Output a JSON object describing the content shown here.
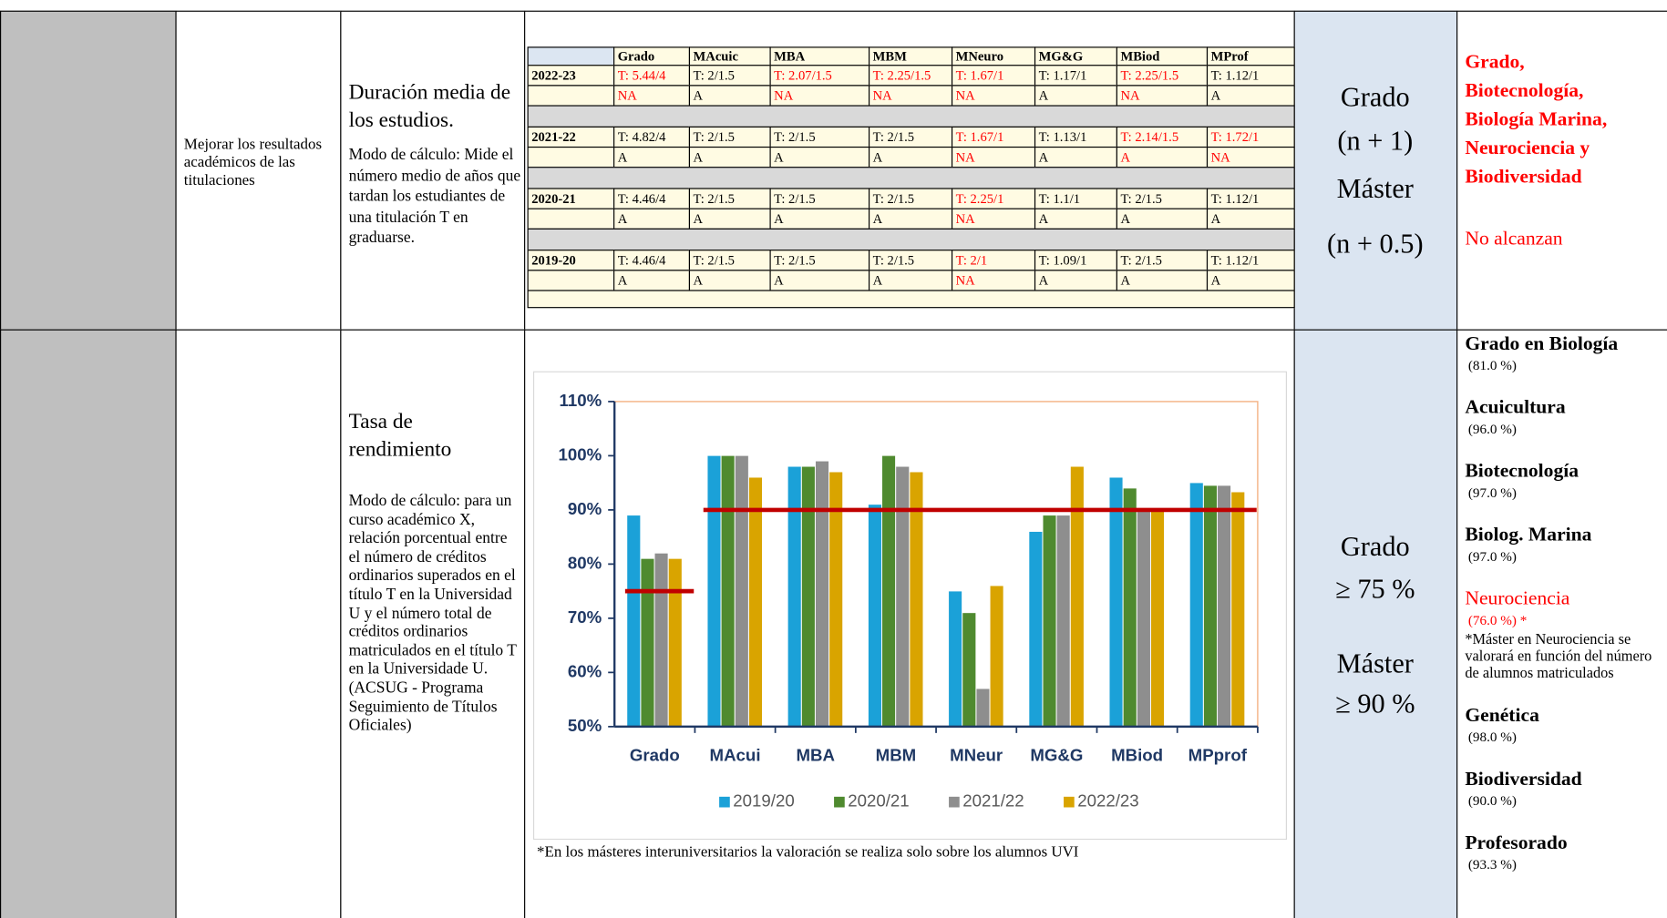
{
  "rows": [
    {
      "objective": "Mejorar los resultados académicos de las titulaciones",
      "title": "Duración media de los estudios.",
      "description": "Modo de cálculo: Mide el número medio de años que tardan los estudiantes de una titulación T en graduarse.",
      "target": [
        "Grado",
        "(n + 1)",
        "Máster",
        "(n + 0.5)"
      ],
      "outcome": {
        "text": "Grado, Biotecnología, Biología Marina, Neurociencia y Biodiversidad",
        "note": "No alcanzan",
        "color": "#ff0000"
      }
    },
    {
      "title": "Tasa de rendimiento",
      "description": "Modo de cálculo: para un curso académico X, relación porcentual entre el número de créditos ordinarios superados en el título T en la Universidad U y el número total de créditos ordinarios matriculados en el título T en la Universidade U. (ACSUG - Programa Seguimiento de Títulos Oficiales)",
      "target": [
        "Grado",
        "≥ 75 %",
        "Máster",
        "≥ 90 %"
      ],
      "outcome": {
        "items": [
          {
            "name": "Grado en Biología",
            "value": "(81.0 %)",
            "color": "#000000"
          },
          {
            "name": "Acuicultura",
            "value": "(96.0 %)",
            "color": "#000000"
          },
          {
            "name": "Biotecnología",
            "value": "(97.0 %)",
            "color": "#000000"
          },
          {
            "name": "Biolog. Marina",
            "value": "(97.0 %)",
            "color": "#000000"
          },
          {
            "name": "Neurociencia",
            "value": "(76.0 %) *",
            "color": "#ff0000",
            "note": "*Máster en Neurociencia se valorará en función del número de alumnos matriculados"
          },
          {
            "name": "Genética",
            "value": "(98.0 %)",
            "color": "#000000"
          },
          {
            "name": "Biodiversidad",
            "value": "(90.0 %)",
            "color": "#000000"
          },
          {
            "name": "Profesorado",
            "value": "(93.3 %)",
            "color": "#000000"
          }
        ]
      }
    }
  ],
  "duration_table": {
    "columns": [
      "Grado",
      "MAcuic",
      "MBA",
      "MBM",
      "MNeuro",
      "MG&G",
      "MBiod",
      "MProf"
    ],
    "years": [
      {
        "year": "2022-23",
        "times": [
          {
            "text": "T: 5.44/4",
            "color": "#ff0000"
          },
          {
            "text": "T: 2/1.5",
            "color": "#000000"
          },
          {
            "text": "T: 2.07/1.5",
            "color": "#ff0000"
          },
          {
            "text": "T: 2.25/1.5",
            "color": "#ff0000"
          },
          {
            "text": "T: 1.67/1",
            "color": "#ff0000"
          },
          {
            "text": "T: 1.17/1",
            "color": "#000000"
          },
          {
            "text": "T: 2.25/1.5",
            "color": "#ff0000"
          },
          {
            "text": "T: 1.12/1",
            "color": "#000000"
          }
        ],
        "status": [
          {
            "text": "NA",
            "color": "#ff0000"
          },
          {
            "text": "A",
            "color": "#000000"
          },
          {
            "text": "NA",
            "color": "#ff0000"
          },
          {
            "text": "NA",
            "color": "#ff0000"
          },
          {
            "text": "NA",
            "color": "#ff0000"
          },
          {
            "text": "A",
            "color": "#000000"
          },
          {
            "text": "NA",
            "color": "#ff0000"
          },
          {
            "text": "A",
            "color": "#000000"
          }
        ]
      },
      {
        "year": "2021-22",
        "times": [
          {
            "text": "T: 4.82/4",
            "color": "#000000"
          },
          {
            "text": "T: 2/1.5",
            "color": "#000000"
          },
          {
            "text": "T: 2/1.5",
            "color": "#000000"
          },
          {
            "text": "T: 2/1.5",
            "color": "#000000"
          },
          {
            "text": "T: 1.67/1",
            "color": "#ff0000"
          },
          {
            "text": "T: 1.13/1",
            "color": "#000000"
          },
          {
            "text": "T: 2.14/1.5",
            "color": "#ff0000"
          },
          {
            "text": "T: 1.72/1",
            "color": "#ff0000"
          }
        ],
        "status": [
          {
            "text": "A",
            "color": "#000000"
          },
          {
            "text": "A",
            "color": "#000000"
          },
          {
            "text": "A",
            "color": "#000000"
          },
          {
            "text": "A",
            "color": "#000000"
          },
          {
            "text": "NA",
            "color": "#ff0000"
          },
          {
            "text": "A",
            "color": "#000000"
          },
          {
            "text": "A",
            "color": "#ff0000"
          },
          {
            "text": "NA",
            "color": "#ff0000"
          }
        ]
      },
      {
        "year": "2020-21",
        "times": [
          {
            "text": "T: 4.46/4",
            "color": "#000000"
          },
          {
            "text": "T: 2/1.5",
            "color": "#000000"
          },
          {
            "text": "T: 2/1.5",
            "color": "#000000"
          },
          {
            "text": "T: 2/1.5",
            "color": "#000000"
          },
          {
            "text": "T: 2.25/1",
            "color": "#ff0000"
          },
          {
            "text": "T: 1.1/1",
            "color": "#000000"
          },
          {
            "text": "T: 2/1.5",
            "color": "#000000"
          },
          {
            "text": "T: 1.12/1",
            "color": "#000000"
          }
        ],
        "status": [
          {
            "text": "A",
            "color": "#000000"
          },
          {
            "text": "A",
            "color": "#000000"
          },
          {
            "text": "A",
            "color": "#000000"
          },
          {
            "text": "A",
            "color": "#000000"
          },
          {
            "text": "NA",
            "color": "#ff0000"
          },
          {
            "text": "A",
            "color": "#000000"
          },
          {
            "text": "A",
            "color": "#000000"
          },
          {
            "text": "A",
            "color": "#000000"
          }
        ]
      },
      {
        "year": "2019-20",
        "times": [
          {
            "text": "T: 4.46/4",
            "color": "#000000"
          },
          {
            "text": "T: 2/1.5",
            "color": "#000000"
          },
          {
            "text": "T: 2/1.5",
            "color": "#000000"
          },
          {
            "text": "T: 2/1.5",
            "color": "#000000"
          },
          {
            "text": "T: 2/1",
            "color": "#ff0000"
          },
          {
            "text": "T: 1.09/1",
            "color": "#000000"
          },
          {
            "text": "T: 2/1.5",
            "color": "#000000"
          },
          {
            "text": "T: 1.12/1",
            "color": "#000000"
          }
        ],
        "status": [
          {
            "text": "A",
            "color": "#000000"
          },
          {
            "text": "A",
            "color": "#000000"
          },
          {
            "text": "A",
            "color": "#000000"
          },
          {
            "text": "A",
            "color": "#000000"
          },
          {
            "text": "NA",
            "color": "#ff0000"
          },
          {
            "text": "A",
            "color": "#000000"
          },
          {
            "text": "A",
            "color": "#000000"
          },
          {
            "text": "A",
            "color": "#000000"
          }
        ]
      }
    ]
  },
  "chart_data": {
    "type": "bar",
    "categories": [
      "Grado",
      "MAcui",
      "MBA",
      "MBM",
      "MNeur",
      "MG&G",
      "MBiod",
      "MPprof"
    ],
    "series": [
      {
        "name": "2019/20",
        "color": "#1ba1d8",
        "values": [
          89,
          100,
          98,
          91,
          75,
          86,
          96,
          95
        ]
      },
      {
        "name": "2020/21",
        "color": "#4f8a2f",
        "values": [
          81,
          100,
          98,
          100,
          71,
          89,
          94,
          94.5
        ]
      },
      {
        "name": "2021/22",
        "color": "#8e8e8e",
        "values": [
          82,
          100,
          99,
          98,
          57,
          89,
          90,
          94.5
        ]
      },
      {
        "name": "2022/23",
        "color": "#d9a400",
        "values": [
          81,
          96,
          97,
          97,
          76,
          98,
          90,
          93.3
        ]
      }
    ],
    "ylim": [
      50,
      110
    ],
    "yticks": [
      {
        "value": 50,
        "label": "50%"
      },
      {
        "value": 60,
        "label": "60%"
      },
      {
        "value": 70,
        "label": "70%"
      },
      {
        "value": 80,
        "label": "80%"
      },
      {
        "value": 90,
        "label": "90%"
      },
      {
        "value": 100,
        "label": "100%"
      },
      {
        "value": 110,
        "label": "110%"
      }
    ],
    "reference_lines": [
      {
        "value": 75,
        "from": "Grado",
        "to": "Grado",
        "color": "#c00000"
      },
      {
        "value": 90,
        "from": "MAcui",
        "to": "MPprof",
        "color": "#c00000"
      }
    ],
    "legend": "bottom",
    "footnote": "*En los másteres interuniversitarios la valoración se realiza solo sobre los alumnos UVI"
  }
}
